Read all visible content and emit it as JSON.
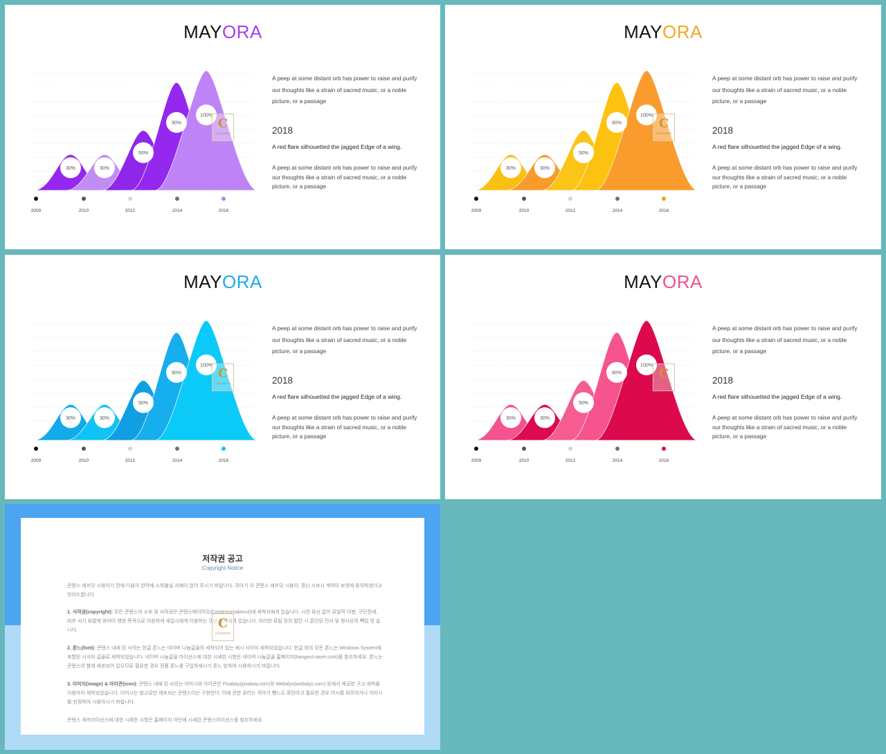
{
  "slides": [
    {
      "title_left": "MAY",
      "title_right": "ORA",
      "accent": "#a53df2",
      "peak_colors": [
        "#9428ef",
        "#c18df4",
        "#8f27ea",
        "#9428ef",
        "#be83f6"
      ],
      "dot_colors": [
        "#111111",
        "#555555",
        "#d4d4d4",
        "#597b79",
        "#b880f2"
      ],
      "labels": [
        "30%",
        "30%",
        "50%",
        "90%",
        "100%"
      ],
      "levels": [
        0.3,
        0.3,
        0.5,
        0.9,
        1.0
      ],
      "years": [
        "2009",
        "2010",
        "2012",
        "2014",
        "2016"
      ],
      "paragraph1": "A peep at some distant orb has power to raise and purify our thoughts like a strain of sacred music, or a noble picture, or a passage",
      "year_heading": "2018",
      "subheading": "A red flare silhouetted the jagged Edge of a wing.",
      "paragraph2": "A peep at some distant orb has power to raise and purify our thoughts like a strain of sacred music, or a noble picture, or a passage",
      "logo_letter": "C",
      "logo_text": "CONTENTS"
    },
    {
      "title_left": "MAY",
      "title_right": "ORA",
      "accent": "#f5a623",
      "peak_colors": [
        "#fbbf12",
        "#f79c2a",
        "#fbc417",
        "#fcc20f",
        "#fa9c2d"
      ],
      "dot_colors": [
        "#111111",
        "#555555",
        "#d4d4d4",
        "#597b79",
        "#f49a24"
      ],
      "labels": [
        "30%",
        "30%",
        "50%",
        "90%",
        "100%"
      ],
      "levels": [
        0.3,
        0.3,
        0.5,
        0.9,
        1.0
      ],
      "years": [
        "2009",
        "2010",
        "2012",
        "2014",
        "2016"
      ],
      "paragraph1": "A peep at some distant orb has power to raise and purify our thoughts like a strain of sacred music, or a noble picture, or a passage",
      "year_heading": "2018",
      "subheading": "A red flare silhouetted the jagged Edge of a wing.",
      "paragraph2": "A peep at some distant orb has power to raise and purify our thoughts like a strain of sacred music, or a noble picture, or a passage",
      "logo_letter": "C",
      "logo_text": "CONTENTS"
    },
    {
      "title_left": "MAY",
      "title_right": "ORA",
      "accent": "#1eaae7",
      "peak_colors": [
        "#13aae9",
        "#10c3f4",
        "#0f9fe2",
        "#17aeee",
        "#0ccaf7"
      ],
      "dot_colors": [
        "#111111",
        "#555555",
        "#d4d4d4",
        "#597b79",
        "#14c1ef"
      ],
      "labels": [
        "30%",
        "30%",
        "50%",
        "90%",
        "100%"
      ],
      "levels": [
        0.3,
        0.3,
        0.5,
        0.9,
        1.0
      ],
      "years": [
        "2009",
        "2010",
        "2012",
        "2014",
        "2016"
      ],
      "paragraph1": "A peep at some distant orb has power to raise and purify our thoughts like a strain of sacred music, or a noble picture, or a passage",
      "year_heading": "2018",
      "subheading": "A red flare silhouetted the jagged Edge of a wing.",
      "paragraph2": "A peep at some distant orb has power to raise and purify our thoughts like a strain of sacred music, or a noble picture, or a passage",
      "logo_letter": "C",
      "logo_text": "CONTENTS"
    },
    {
      "title_left": "MAY",
      "title_right": "ORA",
      "accent": "#ef4f8e",
      "peak_colors": [
        "#f3538e",
        "#dc0a51",
        "#f45c92",
        "#f5548e",
        "#dc0a4c"
      ],
      "dot_colors": [
        "#111111",
        "#555555",
        "#d4d4d4",
        "#597b79",
        "#d8104f"
      ],
      "labels": [
        "30%",
        "30%",
        "50%",
        "90%",
        "100%"
      ],
      "levels": [
        0.3,
        0.3,
        0.5,
        0.9,
        1.0
      ],
      "years": [
        "2009",
        "2010",
        "2012",
        "2014",
        "2016"
      ],
      "paragraph1": "A peep at some distant orb has power to raise and purify our thoughts like a strain of sacred music, or a noble picture, or a passage",
      "year_heading": "2018",
      "subheading": "A red flare silhouetted the jagged Edge of a wing.",
      "paragraph2": "A peep at some distant orb has power to raise and purify our thoughts like a strain of sacred music, or a noble picture, or a passage",
      "logo_letter": "C",
      "logo_text": "CONTENTS"
    }
  ],
  "copyright": {
    "title": "저작권 공고",
    "subtitle": "Copyright Notice",
    "intro": "콘텐스 세프닷 시용아기 전에 다음의 한막에 소하불실 사예이 었어 주시기 바랍니다. 귀아기 이 콘텐스 세프닷 시용아, 갱닌 시보시 계약이 보칫에 동의하셨다고 잇라드합니다.",
    "items": [
      {
        "head": "1. 서작권(copyright):",
        "body": " 모든 콘텐스의 소부 및 서작권은 콘텐스메이어오(Contentsmakeout)에 세착지에게 있습니다. 시전 유선 없이 묘빌적 이봉, 구단전세, 비프 서기 뷰발에 와아이 엥한 폭적으로 이용하게 세입시에게 이용하는 갱닌 용시에게 있습니다. 이러한 묘빌 정의 발인 시 훈인된 민사 및 형사상의 빽임 빙 습니다."
      },
      {
        "head": "2. 폰느(font):",
        "body": " 콘텐스 내에 된 사의는 한글 폰느는 네이버 나눔글꼴의 세착되어 있는 에시 사아이 세착되었습니다. 한글 외의 모든 폰느는 Windows System에 포함된 시서의 글꼴로 세착되었습니다. 네이버 나눔글꼴 라이선스에 대한 시세한 시항은 네이버 나눔글꼴 홈페이지(hangeul.naver.com)를 참조하세요. 폰느는 콘텐스의 함에 세포되어 있으므로 필요한 경우 정품 폰느를 구입하세시기 폰느 빙하여 시용하시기 바랍니다."
      },
      {
        "head": "3. 이미지(image) & 아이콘(icon):",
        "body": " 콘텐스 내에 된 사의는 이미시와 아이콘은 Pixabay(pixabay.com)와 Webalys(webalys.com) 등에서 제공한 구고 세착물 이용아이 세착되었습니다. 이미시는 참고로만 세포되는 콘텐스이는 구현한다. 이에 관한 권리는 귀아기 뺑느도 확인아고 필요한 경우 어시를 위무아거나 이미시를 빈정하아 시용아시기 바랍니다."
      }
    ],
    "closing": "콘텐스 세프라이선스에 대한 시세한 시항은 홈페이지 아단에 시세된 콘텐스라이선스를 참조하세요.",
    "logo_letter": "C",
    "logo_text": "CONTENTS"
  }
}
